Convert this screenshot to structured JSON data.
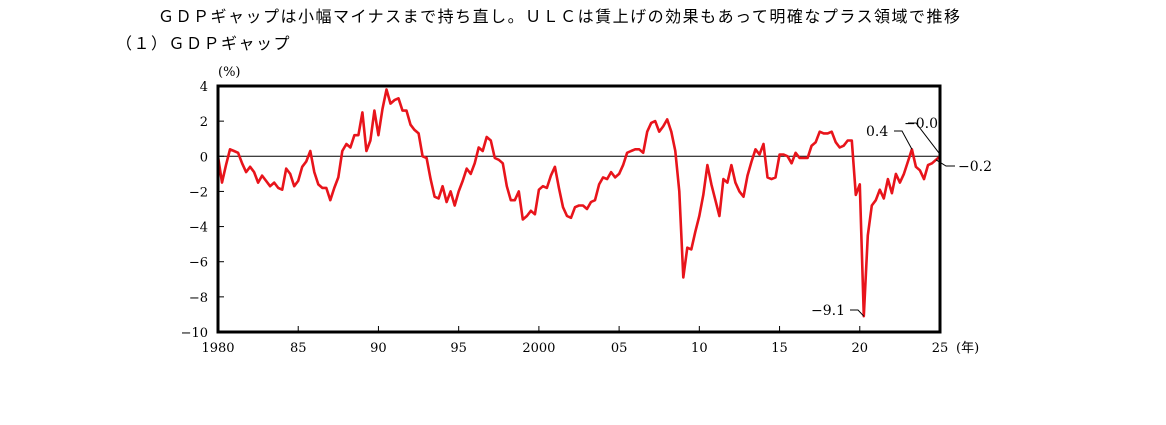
{
  "page": {
    "headline": "ＧＤＰギャップは小幅マイナスまで持ち直し。ＵＬＣは賃上げの効果もあって明確なプラス領域で推移",
    "subheading": "（１）ＧＤＰギャップ"
  },
  "chart_data": {
    "type": "line",
    "title": "",
    "ylabel": "(%)",
    "xlabel": "(年)",
    "ylim": [
      -10,
      4
    ],
    "xlim": [
      1980,
      2025
    ],
    "y_ticks": [
      4,
      2,
      0,
      -2,
      -4,
      -6,
      -8,
      -10
    ],
    "y_tick_labels": [
      "4",
      "2",
      "0",
      "−2",
      "−4",
      "−6",
      "−8",
      "−10"
    ],
    "x_ticks": [
      1980,
      1985,
      1990,
      1995,
      2000,
      2005,
      2010,
      2015,
      2020,
      2025
    ],
    "x_tick_labels": [
      "1980",
      "85",
      "90",
      "95",
      "2000",
      "05",
      "10",
      "15",
      "20",
      "25"
    ],
    "grid": false,
    "zero_line": true,
    "series": [
      {
        "color": "#e8141b",
        "x": [
          1980.0,
          1980.25,
          1980.5,
          1980.75,
          1981.0,
          1981.25,
          1981.5,
          1981.75,
          1982.0,
          1982.25,
          1982.5,
          1982.75,
          1983.0,
          1983.25,
          1983.5,
          1983.75,
          1984.0,
          1984.25,
          1984.5,
          1984.75,
          1985.0,
          1985.25,
          1985.5,
          1985.75,
          1986.0,
          1986.25,
          1986.5,
          1986.75,
          1987.0,
          1987.25,
          1987.5,
          1987.75,
          1988.0,
          1988.25,
          1988.5,
          1988.75,
          1989.0,
          1989.25,
          1989.5,
          1989.75,
          1990.0,
          1990.25,
          1990.5,
          1990.75,
          1991.0,
          1991.25,
          1991.5,
          1991.75,
          1992.0,
          1992.25,
          1992.5,
          1992.75,
          1993.0,
          1993.25,
          1993.5,
          1993.75,
          1994.0,
          1994.25,
          1994.5,
          1994.75,
          1995.0,
          1995.25,
          1995.5,
          1995.75,
          1996.0,
          1996.25,
          1996.5,
          1996.75,
          1997.0,
          1997.25,
          1997.5,
          1997.75,
          1998.0,
          1998.25,
          1998.5,
          1998.75,
          1999.0,
          1999.25,
          1999.5,
          1999.75,
          2000.0,
          2000.25,
          2000.5,
          2000.75,
          2001.0,
          2001.25,
          2001.5,
          2001.75,
          2002.0,
          2002.25,
          2002.5,
          2002.75,
          2003.0,
          2003.25,
          2003.5,
          2003.75,
          2004.0,
          2004.25,
          2004.5,
          2004.75,
          2005.0,
          2005.25,
          2005.5,
          2005.75,
          2006.0,
          2006.25,
          2006.5,
          2006.75,
          2007.0,
          2007.25,
          2007.5,
          2007.75,
          2008.0,
          2008.25,
          2008.5,
          2008.75,
          2009.0,
          2009.25,
          2009.5,
          2009.75,
          2010.0,
          2010.25,
          2010.5,
          2010.75,
          2011.0,
          2011.25,
          2011.5,
          2011.75,
          2012.0,
          2012.25,
          2012.5,
          2012.75,
          2013.0,
          2013.25,
          2013.5,
          2013.75,
          2014.0,
          2014.25,
          2014.5,
          2014.75,
          2015.0,
          2015.25,
          2015.5,
          2015.75,
          2016.0,
          2016.25,
          2016.5,
          2016.75,
          2017.0,
          2017.25,
          2017.5,
          2017.75,
          2018.0,
          2018.25,
          2018.5,
          2018.75,
          2019.0,
          2019.25,
          2019.5,
          2019.75,
          2020.0,
          2020.25,
          2020.5,
          2020.75,
          2021.0,
          2021.25,
          2021.5,
          2021.75,
          2022.0,
          2022.25,
          2022.5,
          2022.75,
          2023.0,
          2023.25,
          2023.5,
          2023.75,
          2024.0,
          2024.25,
          2024.5,
          2024.75,
          2025.0
        ],
        "values": [
          0.0,
          -1.5,
          -0.5,
          0.4,
          0.3,
          0.2,
          -0.4,
          -0.9,
          -0.6,
          -0.9,
          -1.5,
          -1.1,
          -1.4,
          -1.7,
          -1.5,
          -1.8,
          -1.9,
          -0.7,
          -1.0,
          -1.7,
          -1.4,
          -0.6,
          -0.3,
          0.3,
          -0.9,
          -1.6,
          -1.8,
          -1.8,
          -2.5,
          -1.8,
          -1.2,
          0.3,
          0.7,
          0.5,
          1.2,
          1.2,
          2.5,
          0.3,
          0.9,
          2.6,
          1.2,
          2.7,
          3.8,
          3.0,
          3.2,
          3.3,
          2.6,
          2.6,
          1.8,
          1.5,
          1.3,
          0.0,
          -0.1,
          -1.3,
          -2.3,
          -2.4,
          -1.7,
          -2.6,
          -2.0,
          -2.8,
          -2.0,
          -1.4,
          -0.7,
          -1.0,
          -0.4,
          0.5,
          0.3,
          1.1,
          0.9,
          -0.1,
          -0.2,
          -0.4,
          -1.7,
          -2.5,
          -2.5,
          -2.0,
          -3.6,
          -3.4,
          -3.1,
          -3.3,
          -1.9,
          -1.7,
          -1.8,
          -1.1,
          -0.6,
          -1.8,
          -2.9,
          -3.4,
          -3.5,
          -2.9,
          -2.8,
          -2.8,
          -3.0,
          -2.6,
          -2.5,
          -1.6,
          -1.2,
          -1.3,
          -0.9,
          -1.2,
          -1.0,
          -0.5,
          0.2,
          0.3,
          0.4,
          0.4,
          0.2,
          1.4,
          1.9,
          2.0,
          1.4,
          1.7,
          2.1,
          1.4,
          0.3,
          -2.0,
          -6.9,
          -5.2,
          -5.3,
          -4.3,
          -3.4,
          -2.2,
          -0.5,
          -1.6,
          -2.5,
          -3.4,
          -1.3,
          -1.5,
          -0.5,
          -1.5,
          -2.0,
          -2.3,
          -1.1,
          -0.3,
          0.4,
          0.1,
          0.7,
          -1.2,
          -1.3,
          -1.2,
          0.1,
          0.1,
          0.0,
          -0.4,
          0.2,
          -0.1,
          -0.1,
          -0.1,
          0.6,
          0.8,
          1.4,
          1.3,
          1.3,
          1.4,
          0.8,
          0.5,
          0.6,
          0.9,
          0.9,
          -2.2,
          -1.6,
          -9.1,
          -4.5,
          -2.8,
          -2.5,
          -1.9,
          -2.4,
          -1.3,
          -2.1,
          -1.0,
          -1.5,
          -1.0,
          -0.3,
          0.4,
          -0.6,
          -0.8,
          -1.3,
          -0.5,
          -0.4,
          -0.2,
          0.0
        ]
      }
    ],
    "annotations": [
      {
        "text": "0.4",
        "x": 2023.25,
        "y": 0.4
      },
      {
        "text": "−0.0",
        "x": 2025.0,
        "y": 0.0
      },
      {
        "text": "−0.2",
        "x": 2024.75,
        "y": -0.2
      },
      {
        "text": "−9.1",
        "x": 2020.25,
        "y": -9.1
      }
    ]
  }
}
